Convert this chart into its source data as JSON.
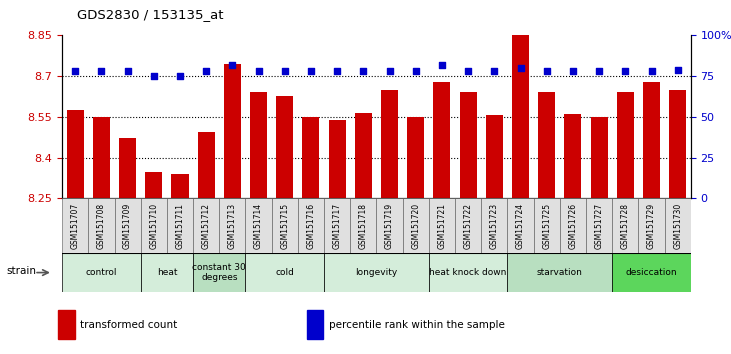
{
  "title": "GDS2830 / 153135_at",
  "samples": [
    "GSM151707",
    "GSM151708",
    "GSM151709",
    "GSM151710",
    "GSM151711",
    "GSM151712",
    "GSM151713",
    "GSM151714",
    "GSM151715",
    "GSM151716",
    "GSM151717",
    "GSM151718",
    "GSM151719",
    "GSM151720",
    "GSM151721",
    "GSM151722",
    "GSM151723",
    "GSM151724",
    "GSM151725",
    "GSM151726",
    "GSM151727",
    "GSM151728",
    "GSM151729",
    "GSM151730"
  ],
  "bar_values": [
    8.575,
    8.548,
    8.473,
    8.345,
    8.34,
    8.495,
    8.745,
    8.64,
    8.625,
    8.548,
    8.54,
    8.565,
    8.65,
    8.548,
    8.68,
    8.64,
    8.555,
    8.89,
    8.64,
    8.56,
    8.548,
    8.64,
    8.68,
    8.65
  ],
  "percentile_values": [
    78,
    78,
    78,
    75,
    75,
    78,
    82,
    78,
    78,
    78,
    78,
    78,
    78,
    78,
    82,
    78,
    78,
    80,
    78,
    78,
    78,
    78,
    78,
    79
  ],
  "groups": [
    {
      "label": "control",
      "start": 0,
      "end": 2,
      "color": "#d4edda"
    },
    {
      "label": "heat",
      "start": 3,
      "end": 4,
      "color": "#d4edda"
    },
    {
      "label": "constant 30\ndegrees",
      "start": 5,
      "end": 6,
      "color": "#b8dfc0"
    },
    {
      "label": "cold",
      "start": 7,
      "end": 9,
      "color": "#d4edda"
    },
    {
      "label": "longevity",
      "start": 10,
      "end": 13,
      "color": "#d4edda"
    },
    {
      "label": "heat knock down",
      "start": 14,
      "end": 16,
      "color": "#d4edda"
    },
    {
      "label": "starvation",
      "start": 17,
      "end": 20,
      "color": "#b8dfc0"
    },
    {
      "label": "desiccation",
      "start": 21,
      "end": 23,
      "color": "#5cd65c"
    }
  ],
  "ylim_left": [
    8.25,
    8.85
  ],
  "ylim_right": [
    0,
    100
  ],
  "bar_color": "#cc0000",
  "dot_color": "#0000cc",
  "bar_bottom": 8.25,
  "ylabel_left_color": "#cc0000",
  "ylabel_right_color": "#0000cc",
  "ylabel_right_ticks": [
    0,
    25,
    50,
    75,
    100
  ],
  "ylabel_right_labels": [
    "0",
    "25",
    "50",
    "75",
    "100%"
  ],
  "ylabel_left_ticks": [
    8.25,
    8.4,
    8.55,
    8.7,
    8.85
  ],
  "hline_values": [
    8.7,
    8.55,
    8.4
  ],
  "strain_label": "strain",
  "legend_items": [
    {
      "label": "transformed count",
      "color": "#cc0000"
    },
    {
      "label": "percentile rank within the sample",
      "color": "#0000cc"
    }
  ]
}
